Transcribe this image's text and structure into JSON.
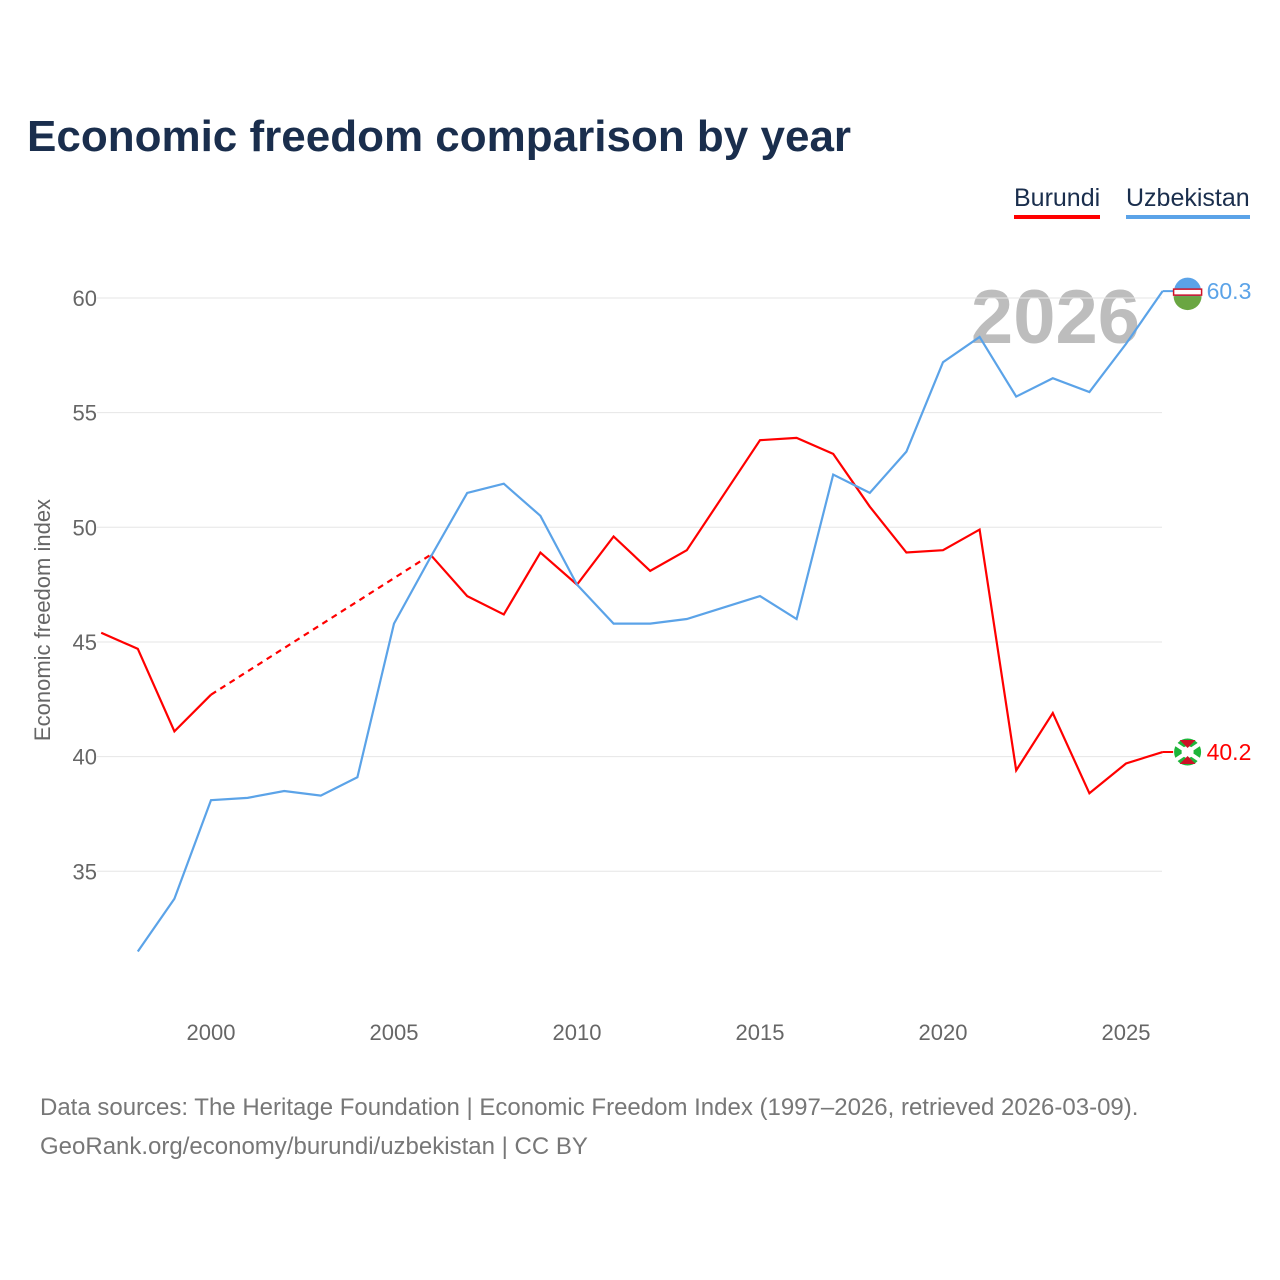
{
  "title": "Economic freedom comparison by year",
  "legend": [
    "Burundi",
    "Uzbekistan"
  ],
  "source_line1": "Data sources: The Heritage Foundation | Economic Freedom Index (1997–2026, retrieved 2026-03-09).",
  "source_line2": "GeoRank.org/economy/burundi/uzbekistan | CC BY",
  "chart_data": {
    "type": "line",
    "title": "Economic freedom comparison by year",
    "ylabel": "Economic freedom index",
    "xlabel": "",
    "year_label": "2026",
    "xlim": [
      1997,
      2026
    ],
    "ylim": [
      30,
      62
    ],
    "xticks": [
      2000,
      2005,
      2010,
      2015,
      2020,
      2025
    ],
    "yticks": [
      35,
      40,
      45,
      50,
      55,
      60
    ],
    "grid": true,
    "legend_position": "top-right",
    "series": [
      {
        "name": "Burundi",
        "color": "#ff0000",
        "end_label": "40.2",
        "x": [
          1997,
          1998,
          1999,
          2000,
          2006,
          2007,
          2008,
          2009,
          2010,
          2011,
          2012,
          2013,
          2014,
          2015,
          2016,
          2017,
          2018,
          2019,
          2020,
          2021,
          2022,
          2023,
          2024,
          2025,
          2026
        ],
        "values": [
          45.4,
          44.7,
          41.1,
          42.7,
          48.8,
          47.0,
          46.2,
          48.9,
          47.5,
          49.6,
          48.1,
          49.0,
          51.4,
          53.8,
          53.9,
          53.2,
          50.9,
          48.9,
          49.0,
          49.9,
          39.4,
          41.9,
          38.4,
          39.7,
          40.2
        ],
        "gap": [
          2000,
          2006
        ]
      },
      {
        "name": "Uzbekistan",
        "color": "#5ba3e8",
        "end_label": "60.3",
        "x": [
          1998,
          1999,
          2000,
          2001,
          2002,
          2003,
          2004,
          2005,
          2006,
          2007,
          2008,
          2009,
          2010,
          2011,
          2012,
          2013,
          2014,
          2015,
          2016,
          2017,
          2018,
          2019,
          2020,
          2021,
          2022,
          2023,
          2024,
          2025,
          2026
        ],
        "values": [
          31.5,
          33.8,
          38.1,
          38.2,
          38.5,
          38.3,
          39.1,
          45.8,
          48.7,
          51.5,
          51.9,
          50.5,
          47.5,
          45.8,
          45.8,
          46.0,
          46.5,
          47.0,
          46.0,
          52.3,
          51.5,
          53.3,
          57.2,
          58.3,
          55.7,
          56.5,
          55.9,
          58.0,
          60.3
        ]
      }
    ]
  }
}
